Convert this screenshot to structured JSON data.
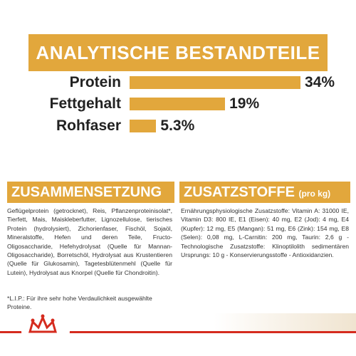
{
  "header": {
    "title": "ANALYTISCHE BESTANDTEILE"
  },
  "chart_data": {
    "type": "bar",
    "orientation": "horizontal",
    "categories": [
      "Protein",
      "Fettgehalt",
      "Rohfaser"
    ],
    "values": [
      34,
      19,
      5.3
    ],
    "value_labels": [
      "34%",
      "19%",
      "5.3%"
    ],
    "color": "#e2a73c"
  },
  "composition": {
    "title": "ZUSAMMENSETZUNG",
    "text": "Geflügelprotein (getrocknet), Reis, Pflanzenproteinisolat*, Tierfett, Mais, Maiskleberfutter, Lignozellulose, tierisches Protein (hydrolysiert), Zichorienfaser, Fischöl, Sojaöl, Mineralstoffe, Hefen und deren Teile, Fructo-Oligosaccharide, Hefehydrolysat (Quelle für Mannan-Oligosaccharide), Borretschöl, Hydrolysat aus Krustentieren (Quelle für Glukosamin), Tagetesblütenmehl (Quelle für Lutein), Hydrolysat aus Knorpel (Quelle für Chondroitin).",
    "note": "*L.I.P.: Für ihre sehr hohe Verdaulichkeit ausgewählte Proteine."
  },
  "additives": {
    "title": "ZUSATZSTOFFE",
    "unit": "(pro kg)",
    "text": "Ernährungsphysiologische Zusatzstoffe: Vitamin A: 31000 IE, Vitamin D3: 800 IE, E1 (Eisen): 40 mg, E2 (Jod): 4 mg, E4 (Kupfer): 12 mg, E5 (Mangan): 51 mg, E6 (Zink): 154 mg, E8 (Selen): 0,08 mg, L-Carnitin: 200 mg, Taurin: 2,6 g - Technologische Zusatzstoffe: Klinoptilolith sedimentären Ursprungs: 10 g - Konservierungsstoffe - Antioxidanzien."
  }
}
